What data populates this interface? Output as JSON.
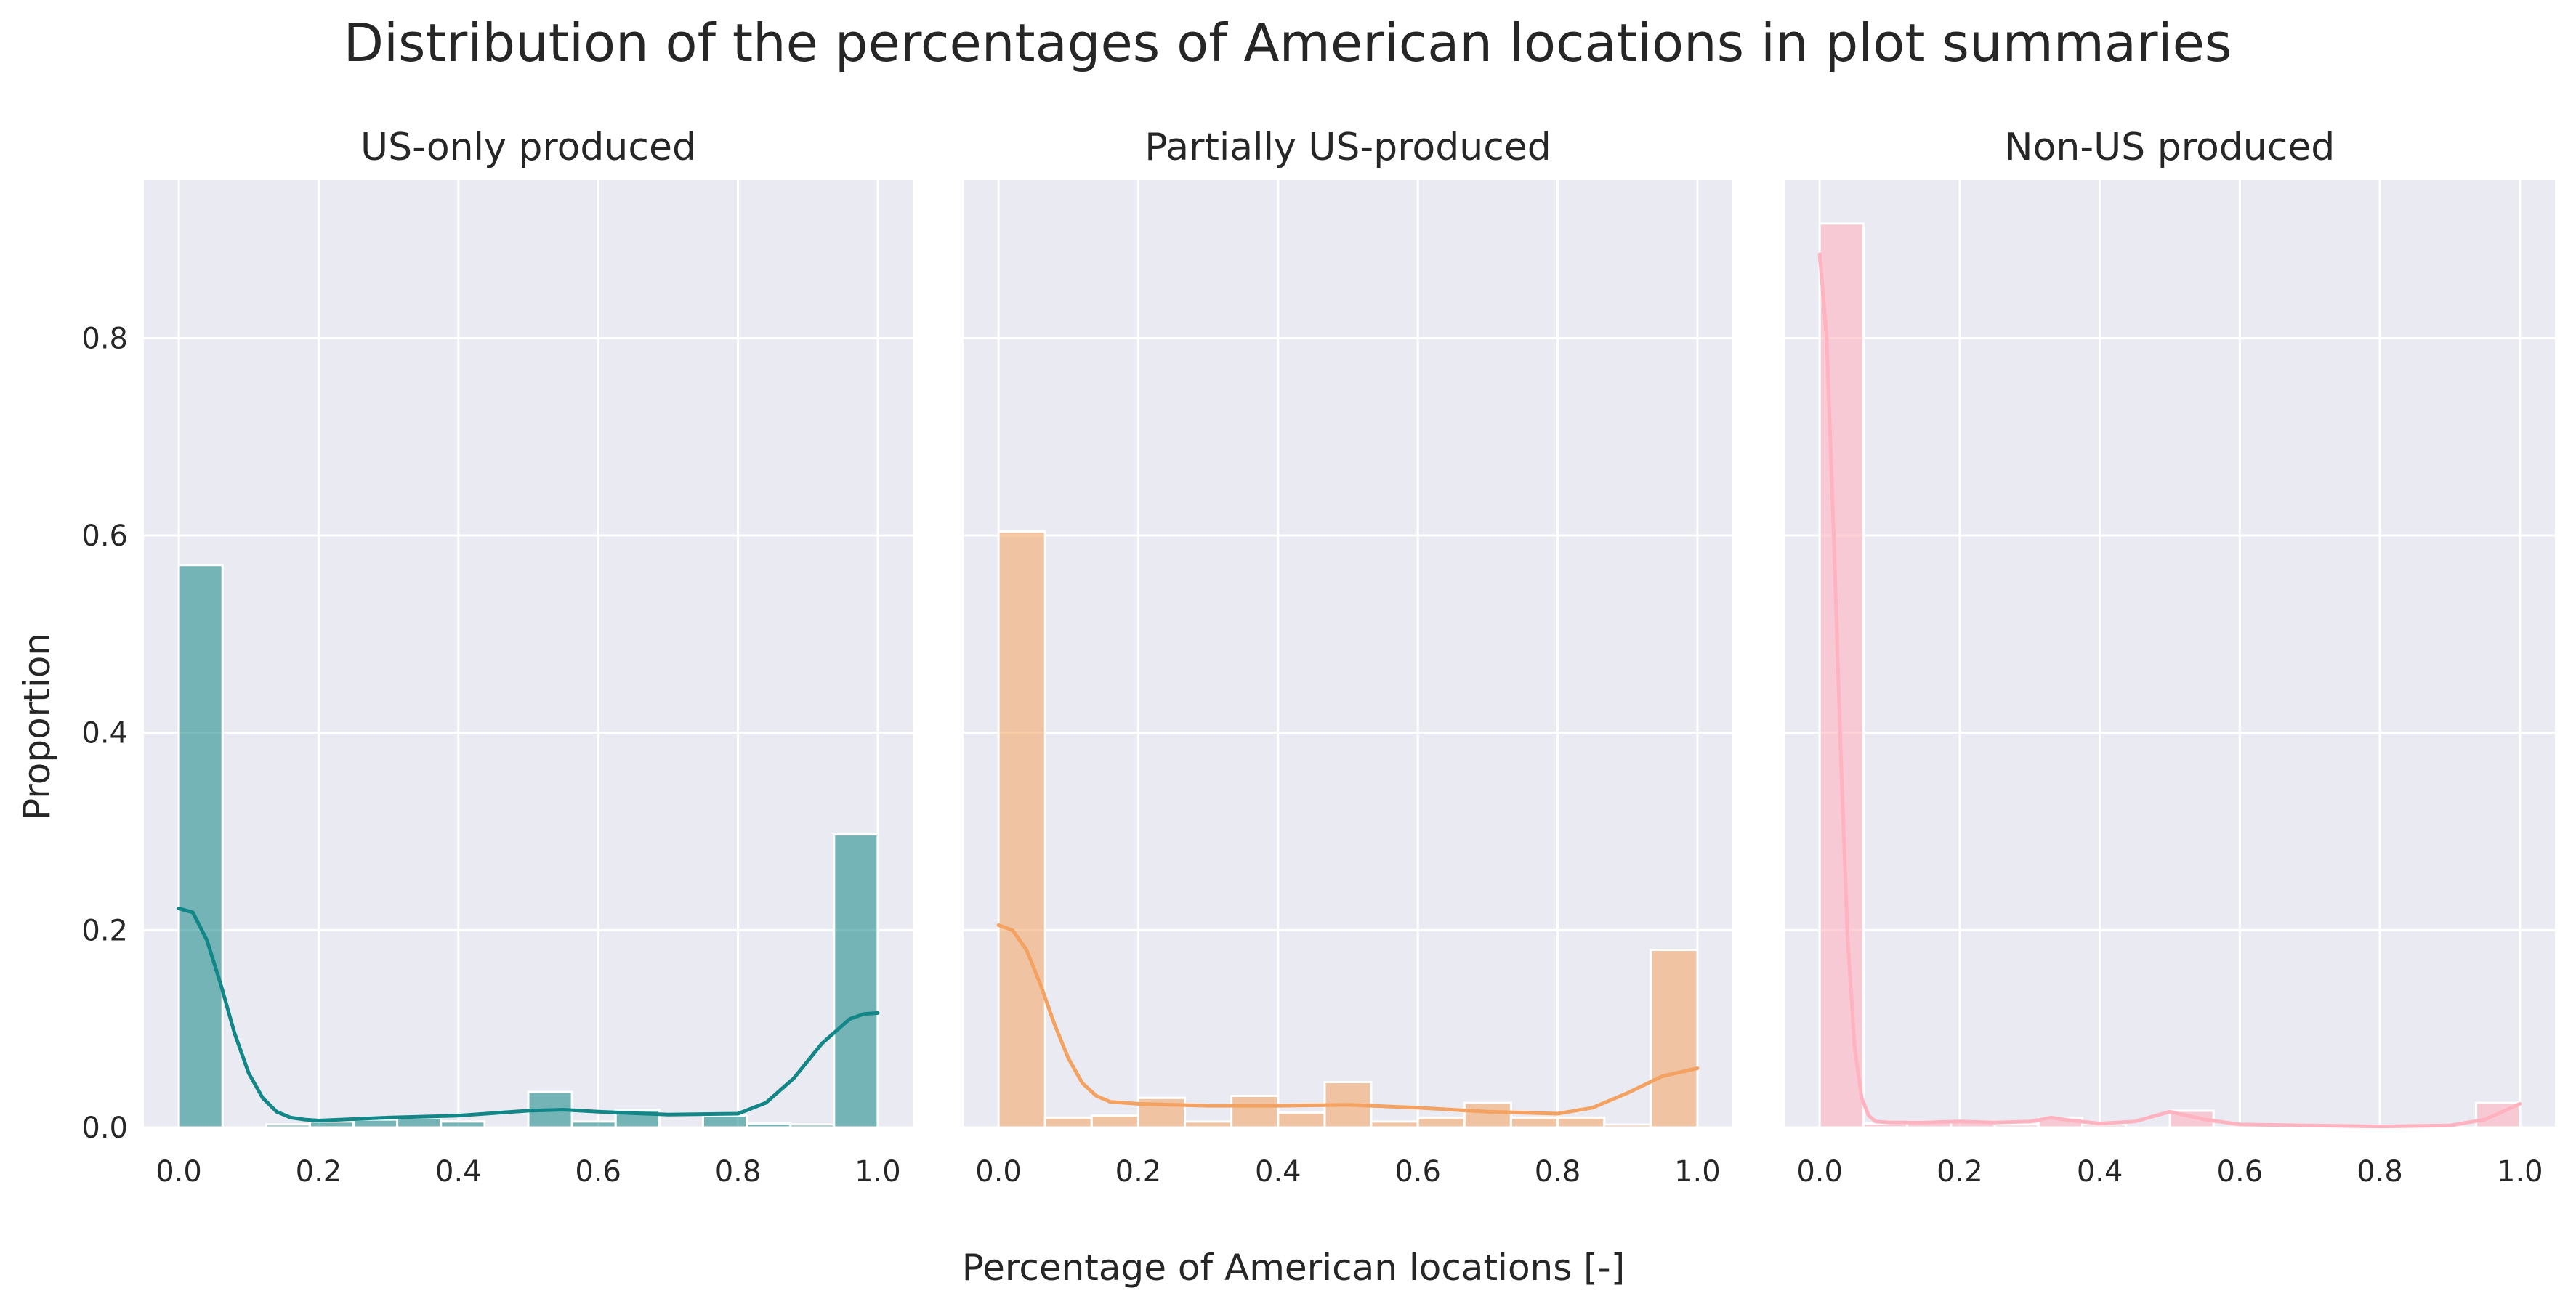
{
  "figure": {
    "suptitle": "Distribution of the percentages of American locations in plot summaries",
    "xlabel": "Percentage of American locations [-]",
    "ylabel": "Proportion",
    "background": "#eaeaf2",
    "grid_color": "#ffffff"
  },
  "chart_data": [
    {
      "type": "bar",
      "title": "US-only produced",
      "color": "#138787",
      "bar_opacity": 0.55,
      "xlim": [
        -0.05,
        1.05
      ],
      "ylim": [
        0,
        0.96
      ],
      "xticks": [
        "0.0",
        "0.2",
        "0.4",
        "0.6",
        "0.8",
        "1.0"
      ],
      "yticks": [
        "0.0",
        "0.2",
        "0.4",
        "0.6",
        "0.8"
      ],
      "grid": true,
      "bin_edges": [
        0,
        0.0625,
        0.125,
        0.1875,
        0.25,
        0.3125,
        0.375,
        0.4375,
        0.5,
        0.5625,
        0.625,
        0.6875,
        0.75,
        0.8125,
        0.875,
        0.9375,
        1.0
      ],
      "values": [
        0.57,
        0.0,
        0.003,
        0.006,
        0.008,
        0.01,
        0.006,
        0.0,
        0.036,
        0.006,
        0.018,
        0.0,
        0.012,
        0.004,
        0.003,
        0.297
      ],
      "kde": {
        "x": [
          0,
          0.02,
          0.04,
          0.06,
          0.08,
          0.1,
          0.12,
          0.14,
          0.16,
          0.18,
          0.2,
          0.3,
          0.4,
          0.5,
          0.55,
          0.6,
          0.7,
          0.8,
          0.84,
          0.88,
          0.92,
          0.96,
          0.98,
          1.0
        ],
        "y": [
          0.222,
          0.218,
          0.19,
          0.145,
          0.095,
          0.055,
          0.03,
          0.016,
          0.01,
          0.008,
          0.007,
          0.01,
          0.012,
          0.017,
          0.018,
          0.016,
          0.013,
          0.014,
          0.025,
          0.05,
          0.085,
          0.11,
          0.115,
          0.116
        ]
      }
    },
    {
      "type": "bar",
      "title": "Partially US-produced",
      "color": "#f4a261",
      "bar_opacity": 0.55,
      "xlim": [
        -0.05,
        1.05
      ],
      "ylim": [
        0,
        0.96
      ],
      "xticks": [
        "0.0",
        "0.2",
        "0.4",
        "0.6",
        "0.8",
        "1.0"
      ],
      "yticks": [
        "0.0",
        "0.2",
        "0.4",
        "0.6",
        "0.8"
      ],
      "grid": true,
      "bin_edges": [
        0,
        0.0667,
        0.1333,
        0.2,
        0.2667,
        0.3333,
        0.4,
        0.4667,
        0.5333,
        0.6,
        0.6667,
        0.7333,
        0.8,
        0.8667,
        0.9333,
        1.0
      ],
      "values": [
        0.604,
        0.01,
        0.012,
        0.03,
        0.006,
        0.032,
        0.015,
        0.046,
        0.006,
        0.01,
        0.025,
        0.01,
        0.01,
        0.003,
        0.18
      ],
      "kde": {
        "x": [
          0,
          0.02,
          0.04,
          0.06,
          0.08,
          0.1,
          0.12,
          0.14,
          0.16,
          0.2,
          0.25,
          0.3,
          0.4,
          0.5,
          0.6,
          0.7,
          0.8,
          0.85,
          0.9,
          0.95,
          1.0
        ],
        "y": [
          0.205,
          0.2,
          0.18,
          0.145,
          0.105,
          0.07,
          0.045,
          0.032,
          0.026,
          0.024,
          0.023,
          0.022,
          0.022,
          0.023,
          0.02,
          0.016,
          0.014,
          0.02,
          0.035,
          0.052,
          0.06
        ]
      }
    },
    {
      "type": "bar",
      "title": "Non-US produced",
      "color": "#ffb2bf",
      "bar_opacity": 0.6,
      "xlim": [
        -0.05,
        1.05
      ],
      "ylim": [
        0,
        0.96
      ],
      "xticks": [
        "0.0",
        "0.2",
        "0.4",
        "0.6",
        "0.8",
        "1.0"
      ],
      "yticks": [
        "0.0",
        "0.2",
        "0.4",
        "0.6",
        "0.8"
      ],
      "grid": true,
      "bin_edges": [
        0,
        0.0625,
        0.125,
        0.1875,
        0.25,
        0.3125,
        0.375,
        0.4375,
        0.5,
        0.5625,
        0.625,
        0.6875,
        0.75,
        0.8125,
        0.875,
        0.9375,
        1.0
      ],
      "values": [
        0.916,
        0.004,
        0.006,
        0.006,
        0.003,
        0.01,
        0.003,
        0.0,
        0.017,
        0.0,
        0.003,
        0.0,
        0.0,
        0.0,
        0.0,
        0.025
      ],
      "kde": {
        "x": [
          0,
          0.01,
          0.02,
          0.03,
          0.04,
          0.05,
          0.06,
          0.07,
          0.08,
          0.1,
          0.15,
          0.2,
          0.25,
          0.3,
          0.33,
          0.36,
          0.4,
          0.45,
          0.5,
          0.55,
          0.6,
          0.7,
          0.8,
          0.9,
          0.95,
          1.0
        ],
        "y": [
          0.885,
          0.8,
          0.6,
          0.38,
          0.19,
          0.08,
          0.03,
          0.012,
          0.006,
          0.005,
          0.005,
          0.006,
          0.005,
          0.006,
          0.01,
          0.007,
          0.004,
          0.006,
          0.016,
          0.008,
          0.003,
          0.002,
          0.001,
          0.002,
          0.008,
          0.024
        ]
      }
    }
  ]
}
